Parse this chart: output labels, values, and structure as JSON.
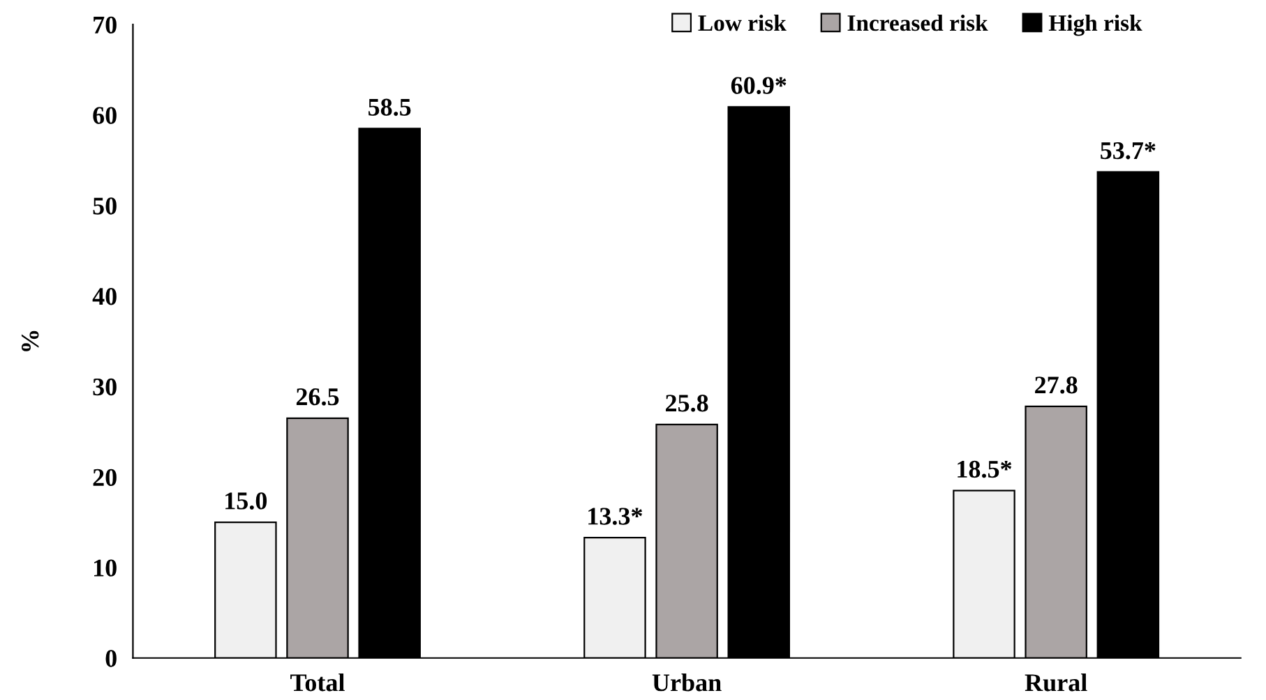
{
  "chart_data": {
    "type": "bar",
    "ylabel": "%",
    "categories": [
      "Total",
      "Urban",
      "Rural"
    ],
    "series": [
      {
        "name": "Low risk",
        "color": "#f0f0f0",
        "values": [
          15.0,
          13.3,
          18.5
        ],
        "value_labels": [
          "15.0",
          "13.3*",
          "18.5*"
        ]
      },
      {
        "name": "Increased risk",
        "color": "#aba5a5",
        "values": [
          26.5,
          25.8,
          27.8
        ],
        "value_labels": [
          "26.5",
          "25.8",
          "27.8"
        ]
      },
      {
        "name": "High risk",
        "color": "#000000",
        "values": [
          58.5,
          60.9,
          53.7
        ],
        "value_labels": [
          "58.5",
          "60.9*",
          "53.7*"
        ]
      }
    ],
    "ylim": [
      0,
      70
    ],
    "yticks": [
      0,
      10,
      20,
      30,
      40,
      50,
      60,
      70
    ],
    "grid": false,
    "legend": "top right"
  }
}
